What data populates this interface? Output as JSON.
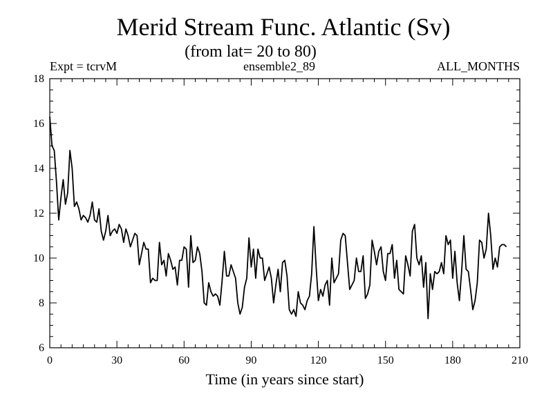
{
  "chart_data": {
    "type": "line",
    "title": "Merid Stream Func. Atlantic (Sv)",
    "subtitle": "(from lat= 20 to 80)",
    "header": {
      "left": "Expt = tcrvM",
      "center": "ensemble2_89",
      "right": "ALL_MONTHS"
    },
    "xlabel": "Time (in years since start)",
    "ylabel": "",
    "xlim": [
      0,
      210
    ],
    "ylim": [
      6,
      18
    ],
    "xticks": [
      0,
      30,
      60,
      90,
      120,
      150,
      180,
      210
    ],
    "yticks": [
      6,
      8,
      10,
      12,
      14,
      16,
      18
    ],
    "x_minor_step": 5,
    "y_minor_step": 0.5,
    "line_color": "#000000",
    "series": [
      {
        "name": "ensemble2_89",
        "x_start": 0,
        "x_step": 1,
        "values": [
          16.3,
          15.0,
          14.8,
          13.4,
          11.7,
          12.7,
          13.5,
          12.4,
          12.9,
          14.8,
          14.0,
          12.3,
          12.5,
          12.2,
          11.7,
          11.9,
          11.8,
          11.6,
          11.9,
          12.5,
          11.7,
          11.6,
          12.2,
          11.2,
          10.8,
          11.2,
          11.9,
          11.0,
          11.2,
          11.3,
          11.1,
          11.5,
          11.3,
          10.7,
          11.3,
          11.0,
          10.5,
          10.8,
          11.1,
          11.0,
          9.7,
          10.2,
          10.7,
          10.4,
          10.4,
          8.9,
          9.1,
          9.0,
          9.0,
          10.7,
          9.7,
          9.9,
          9.2,
          10.2,
          9.9,
          9.5,
          9.6,
          8.8,
          9.9,
          9.9,
          10.5,
          10.4,
          8.7,
          11.0,
          9.8,
          9.9,
          10.5,
          10.2,
          9.4,
          8.0,
          7.9,
          8.9,
          8.5,
          8.3,
          8.4,
          8.3,
          7.9,
          9.0,
          10.3,
          9.2,
          9.2,
          9.7,
          9.4,
          9.1,
          8.0,
          7.5,
          7.8,
          8.7,
          9.1,
          10.9,
          9.6,
          10.4,
          9.1,
          10.4,
          10.0,
          10.0,
          9.0,
          9.3,
          9.6,
          9.1,
          8.0,
          8.8,
          9.5,
          8.5,
          9.8,
          9.9,
          9.2,
          7.7,
          7.5,
          7.7,
          7.4,
          8.5,
          8.0,
          7.9,
          7.7,
          8.1,
          8.3,
          9.3,
          11.4,
          9.6,
          8.1,
          8.6,
          8.3,
          8.8,
          9.0,
          7.9,
          10.0,
          8.9,
          9.1,
          9.3,
          10.8,
          11.1,
          11.0,
          9.8,
          8.6,
          8.8,
          9.0,
          10.0,
          9.4,
          9.4,
          10.1,
          8.2,
          8.4,
          8.8,
          10.8,
          10.3,
          9.7,
          10.3,
          10.5,
          9.4,
          9.0,
          10.2,
          10.2,
          10.6,
          9.1,
          9.9,
          8.6,
          8.5,
          8.4,
          10.1,
          9.7,
          9.2,
          11.2,
          11.5,
          10.0,
          9.7,
          10.1,
          8.7,
          9.8,
          7.3,
          9.3,
          8.6,
          9.4,
          9.3,
          9.4,
          9.8,
          9.3,
          11.0,
          10.6,
          10.8,
          9.1,
          10.3,
          8.9,
          8.1,
          9.4,
          11.0,
          9.5,
          9.4,
          8.6,
          7.7,
          8.1,
          8.9,
          10.8,
          10.7,
          10.0,
          10.4,
          12.0,
          11.0,
          9.5,
          10.0,
          9.6,
          10.5,
          10.6,
          10.6,
          10.5
        ]
      }
    ]
  }
}
